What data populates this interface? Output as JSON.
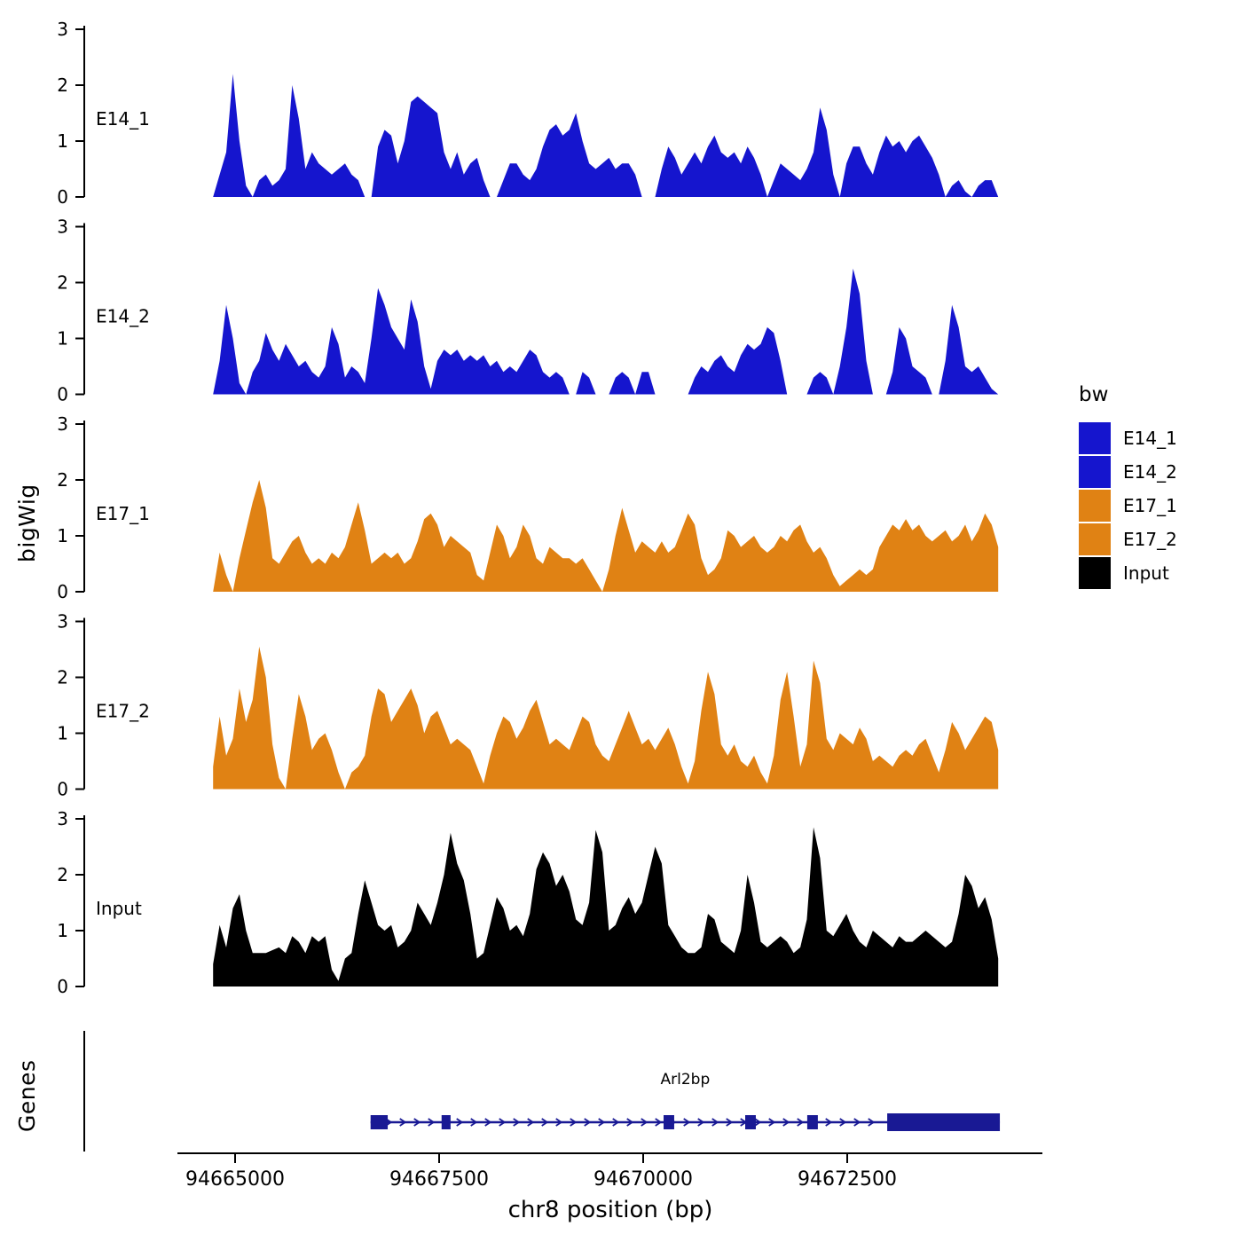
{
  "figure": {
    "y_axis_label": "bigWig",
    "genes_label": "Genes",
    "x_axis_title": "chr8 position (bp)"
  },
  "legend": {
    "title": "bw",
    "items": [
      {
        "label": "E14_1",
        "color": "#1515CE"
      },
      {
        "label": "E14_2",
        "color": "#1515CE"
      },
      {
        "label": "E17_1",
        "color": "#E08214"
      },
      {
        "label": "E17_2",
        "color": "#E08214"
      },
      {
        "label": "Input",
        "color": "#000000"
      }
    ]
  },
  "chart_data": {
    "type": "area",
    "title": "",
    "xlabel": "chr8 position (bp)",
    "ylabel": "bigWig",
    "x_range_bp": [
      94664730,
      94674350
    ],
    "ylim": [
      0,
      3
    ],
    "y_ticks": [
      0,
      1,
      2,
      3
    ],
    "x_ticks": [
      94665000,
      94667500,
      94670000,
      94672500
    ],
    "legend_position": "right",
    "grid": false,
    "tracks": [
      {
        "name": "E14_1",
        "color": "#1515CE",
        "values": [
          0,
          0.4,
          0.8,
          2.2,
          1.0,
          0.2,
          0,
          0.3,
          0.4,
          0.2,
          0.3,
          0.5,
          2.0,
          1.4,
          0.5,
          0.8,
          0.6,
          0.5,
          0.4,
          0.5,
          0.6,
          0.4,
          0.3,
          0,
          0,
          0.9,
          1.2,
          1.1,
          0.6,
          1.0,
          1.7,
          1.8,
          1.7,
          1.6,
          1.5,
          0.8,
          0.5,
          0.8,
          0.4,
          0.6,
          0.7,
          0.3,
          0,
          0,
          0.3,
          0.6,
          0.6,
          0.4,
          0.3,
          0.5,
          0.9,
          1.2,
          1.3,
          1.1,
          1.2,
          1.5,
          1.0,
          0.6,
          0.5,
          0.6,
          0.7,
          0.5,
          0.6,
          0.6,
          0.4,
          0,
          0,
          0,
          0.5,
          0.9,
          0.7,
          0.4,
          0.6,
          0.8,
          0.6,
          0.9,
          1.1,
          0.8,
          0.7,
          0.8,
          0.6,
          0.9,
          0.7,
          0.4,
          0,
          0.3,
          0.6,
          0.5,
          0.4,
          0.3,
          0.5,
          0.8,
          1.6,
          1.2,
          0.4,
          0,
          0.6,
          0.9,
          0.9,
          0.6,
          0.4,
          0.8,
          1.1,
          0.9,
          1.0,
          0.8,
          1.0,
          1.1,
          0.9,
          0.7,
          0.4,
          0,
          0.2,
          0.3,
          0.1,
          0,
          0.2,
          0.3,
          0.3,
          0
        ]
      },
      {
        "name": "E14_2",
        "color": "#1515CE",
        "values": [
          0,
          0.6,
          1.6,
          1.0,
          0.2,
          0,
          0.4,
          0.6,
          1.1,
          0.8,
          0.6,
          0.9,
          0.7,
          0.5,
          0.6,
          0.4,
          0.3,
          0.5,
          1.2,
          0.9,
          0.3,
          0.5,
          0.4,
          0.2,
          1.0,
          1.9,
          1.6,
          1.2,
          1.0,
          0.8,
          1.7,
          1.3,
          0.5,
          0.1,
          0.6,
          0.8,
          0.7,
          0.8,
          0.6,
          0.7,
          0.6,
          0.7,
          0.5,
          0.6,
          0.4,
          0.5,
          0.4,
          0.6,
          0.8,
          0.7,
          0.4,
          0.3,
          0.4,
          0.3,
          0,
          0,
          0.4,
          0.3,
          0,
          0,
          0,
          0.3,
          0.4,
          0.3,
          0,
          0.4,
          0.4,
          0,
          0,
          0,
          0,
          0,
          0,
          0.3,
          0.5,
          0.4,
          0.6,
          0.7,
          0.5,
          0.4,
          0.7,
          0.9,
          0.8,
          0.9,
          1.2,
          1.1,
          0.6,
          0,
          0,
          0,
          0,
          0.3,
          0.4,
          0.3,
          0,
          0.5,
          1.2,
          2.25,
          1.8,
          0.6,
          0,
          0,
          0,
          0.4,
          1.2,
          1.0,
          0.5,
          0.4,
          0.3,
          0,
          0,
          0.6,
          1.6,
          1.2,
          0.5,
          0.4,
          0.5,
          0.3,
          0.1,
          0
        ]
      },
      {
        "name": "E17_1",
        "color": "#E08214",
        "values": [
          0,
          0.7,
          0.3,
          0,
          0.6,
          1.1,
          1.6,
          2.0,
          1.5,
          0.6,
          0.5,
          0.7,
          0.9,
          1.0,
          0.7,
          0.5,
          0.6,
          0.5,
          0.7,
          0.6,
          0.8,
          1.2,
          1.6,
          1.1,
          0.5,
          0.6,
          0.7,
          0.6,
          0.7,
          0.5,
          0.6,
          0.9,
          1.3,
          1.4,
          1.2,
          0.8,
          1.0,
          0.9,
          0.8,
          0.7,
          0.3,
          0.2,
          0.7,
          1.2,
          1.0,
          0.6,
          0.8,
          1.2,
          1.0,
          0.6,
          0.5,
          0.8,
          0.7,
          0.6,
          0.6,
          0.5,
          0.6,
          0.4,
          0.2,
          0,
          0.4,
          1.0,
          1.5,
          1.1,
          0.7,
          0.9,
          0.8,
          0.7,
          0.9,
          0.7,
          0.8,
          1.1,
          1.4,
          1.2,
          0.6,
          0.3,
          0.4,
          0.6,
          1.1,
          1.0,
          0.8,
          0.9,
          1.0,
          0.8,
          0.7,
          0.8,
          1.0,
          0.9,
          1.1,
          1.2,
          0.9,
          0.7,
          0.8,
          0.6,
          0.3,
          0.1,
          0.2,
          0.3,
          0.4,
          0.3,
          0.4,
          0.8,
          1.0,
          1.2,
          1.1,
          1.3,
          1.1,
          1.2,
          1.0,
          0.9,
          1.0,
          1.1,
          0.9,
          1.0,
          1.2,
          0.9,
          1.1,
          1.4,
          1.2,
          0.8
        ]
      },
      {
        "name": "E17_2",
        "color": "#E08214",
        "values": [
          0.4,
          1.3,
          0.6,
          0.9,
          1.8,
          1.2,
          1.6,
          2.55,
          2.0,
          0.8,
          0.2,
          0,
          0.9,
          1.7,
          1.3,
          0.7,
          0.9,
          1.0,
          0.7,
          0.3,
          0,
          0.3,
          0.4,
          0.6,
          1.3,
          1.8,
          1.7,
          1.2,
          1.4,
          1.6,
          1.8,
          1.5,
          1.0,
          1.3,
          1.4,
          1.1,
          0.8,
          0.9,
          0.8,
          0.7,
          0.4,
          0.1,
          0.6,
          1.0,
          1.3,
          1.2,
          0.9,
          1.1,
          1.4,
          1.6,
          1.2,
          0.8,
          0.9,
          0.8,
          0.7,
          1.0,
          1.3,
          1.2,
          0.8,
          0.6,
          0.5,
          0.8,
          1.1,
          1.4,
          1.1,
          0.8,
          0.9,
          0.7,
          0.9,
          1.1,
          0.8,
          0.4,
          0.1,
          0.5,
          1.4,
          2.1,
          1.7,
          0.8,
          0.6,
          0.8,
          0.5,
          0.4,
          0.6,
          0.3,
          0.1,
          0.6,
          1.6,
          2.1,
          1.3,
          0.4,
          0.8,
          2.3,
          1.9,
          0.9,
          0.7,
          1.0,
          0.9,
          0.8,
          1.1,
          0.9,
          0.5,
          0.6,
          0.5,
          0.4,
          0.6,
          0.7,
          0.6,
          0.8,
          0.9,
          0.6,
          0.3,
          0.7,
          1.2,
          1.0,
          0.7,
          0.9,
          1.1,
          1.3,
          1.2,
          0.7
        ]
      },
      {
        "name": "Input",
        "color": "#000000",
        "values": [
          0.4,
          1.1,
          0.7,
          1.4,
          1.65,
          1.0,
          0.6,
          0.6,
          0.6,
          0.65,
          0.7,
          0.6,
          0.9,
          0.8,
          0.6,
          0.9,
          0.8,
          0.9,
          0.3,
          0.1,
          0.5,
          0.6,
          1.3,
          1.9,
          1.5,
          1.1,
          1.0,
          1.1,
          0.7,
          0.8,
          1.0,
          1.5,
          1.3,
          1.1,
          1.5,
          2.0,
          2.75,
          2.2,
          1.9,
          1.3,
          0.5,
          0.6,
          1.1,
          1.6,
          1.4,
          1.0,
          1.1,
          0.9,
          1.3,
          2.1,
          2.4,
          2.2,
          1.8,
          2.0,
          1.7,
          1.2,
          1.1,
          1.5,
          2.8,
          2.4,
          1.0,
          1.1,
          1.4,
          1.6,
          1.3,
          1.5,
          2.0,
          2.5,
          2.2,
          1.1,
          0.9,
          0.7,
          0.6,
          0.6,
          0.7,
          1.3,
          1.2,
          0.8,
          0.7,
          0.6,
          1.0,
          2.0,
          1.5,
          0.8,
          0.7,
          0.8,
          0.9,
          0.8,
          0.6,
          0.7,
          1.2,
          2.85,
          2.3,
          1.0,
          0.9,
          1.1,
          1.3,
          1.0,
          0.8,
          0.7,
          1.0,
          0.9,
          0.8,
          0.7,
          0.9,
          0.8,
          0.8,
          0.9,
          1.0,
          0.9,
          0.8,
          0.7,
          0.8,
          1.3,
          2.0,
          1.8,
          1.4,
          1.6,
          1.2,
          0.5
        ]
      }
    ],
    "gene": {
      "name": "Arl2bp",
      "strand": "right",
      "color": "#191994",
      "start_bp": 94666660,
      "end_bp": 94674370,
      "exons": [
        [
          94666660,
          94666870
        ],
        [
          94667530,
          94667640
        ],
        [
          94670250,
          94670380
        ],
        [
          94671250,
          94671380
        ],
        [
          94672010,
          94672140
        ]
      ],
      "utr_box": [
        94672990,
        94674370
      ]
    }
  }
}
